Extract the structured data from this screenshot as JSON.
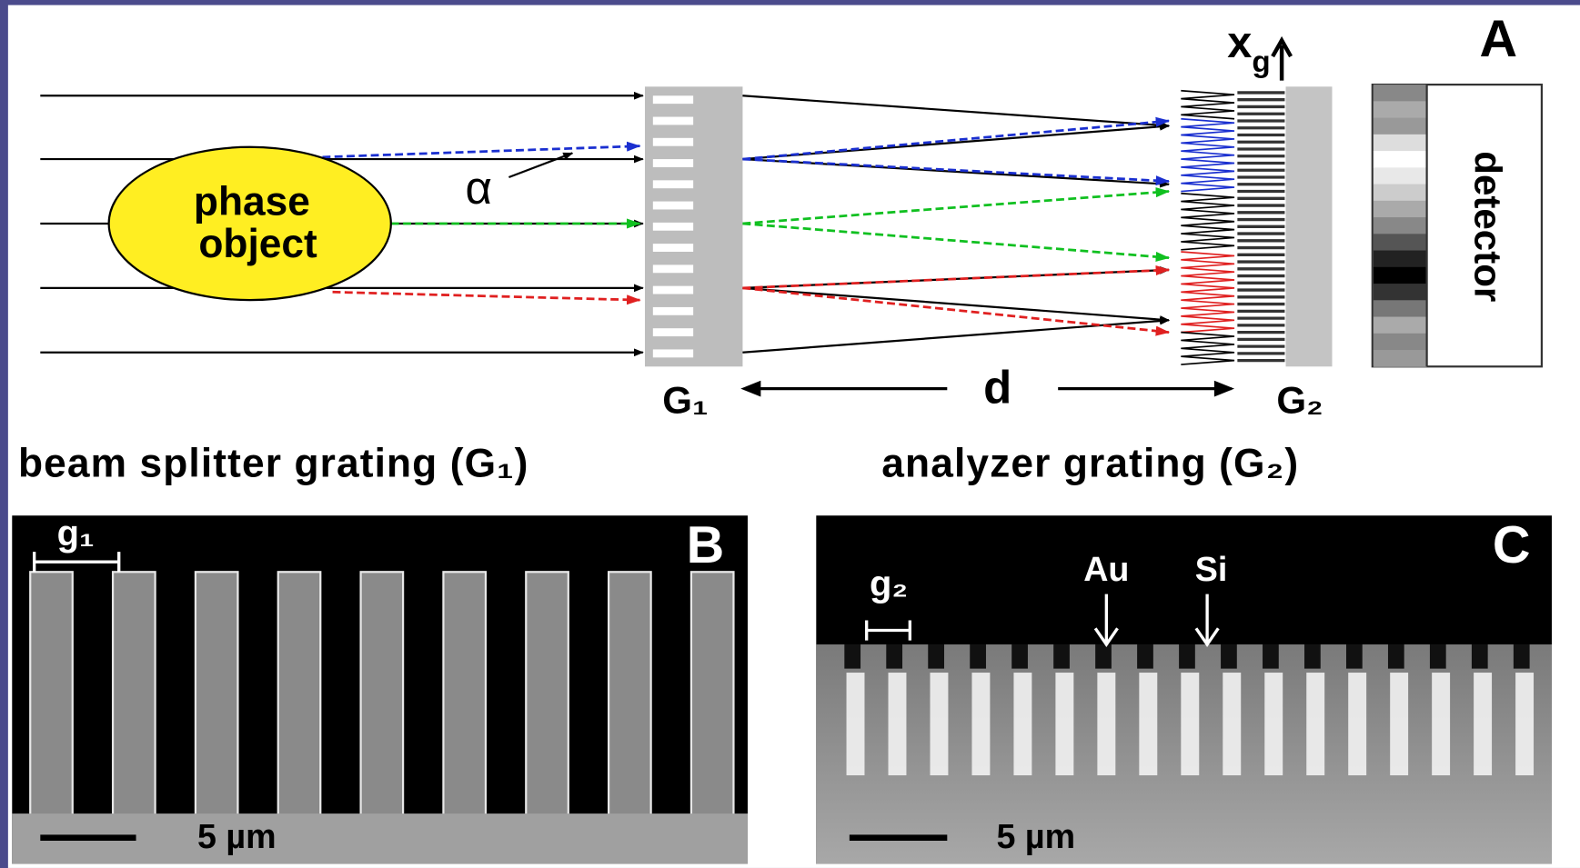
{
  "panel_a": {
    "label": "A",
    "phase_object": [
      "phase",
      "object"
    ],
    "alpha": "α",
    "xg": {
      "main": "x",
      "sub": "g"
    },
    "detector": "detector",
    "g1_label": "G₁",
    "distance": "d",
    "g2_label": "G₂"
  },
  "captions": {
    "left": "beam splitter grating (G₁)",
    "right": "analyzer grating (G₂)"
  },
  "panel_b": {
    "label": "B",
    "period": "g₁",
    "scale": "5 µm"
  },
  "panel_c": {
    "label": "C",
    "period": "g₂",
    "au": "Au",
    "si": "Si",
    "scale": "5 µm"
  }
}
